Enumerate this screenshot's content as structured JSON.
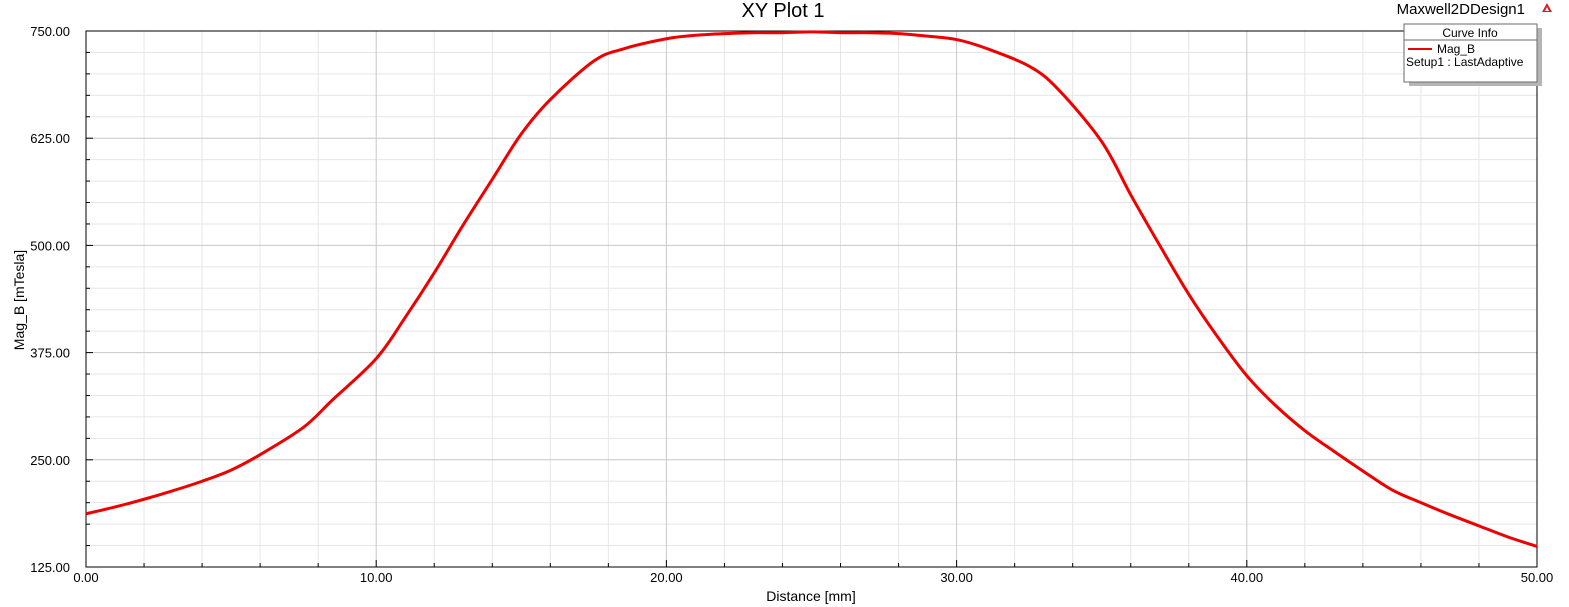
{
  "design_name": "Maxwell2DDesign1",
  "legend": {
    "header": "Curve Info",
    "entry_name": "Mag_B",
    "entry_setup": "Setup1 : LastAdaptive",
    "position": "top-right"
  },
  "colors": {
    "curve": "#ee0000",
    "major_grid": "#c8c8c8",
    "minor_grid": "#e6e6e6",
    "axis": "#000000"
  },
  "icons": [
    "ansys-logo-icon"
  ],
  "chart_data": {
    "type": "line",
    "title": "XY Plot 1",
    "xlabel": "Distance [mm]",
    "ylabel": "Mag_B [mTesla]",
    "xlim": [
      0,
      50
    ],
    "ylim": [
      125,
      750
    ],
    "grid": true,
    "x_ticks": [
      0,
      10,
      20,
      30,
      40,
      50
    ],
    "x_tick_labels": [
      "0.00",
      "10.00",
      "20.00",
      "30.00",
      "40.00",
      "50.00"
    ],
    "y_ticks": [
      125,
      250,
      375,
      500,
      625,
      750
    ],
    "y_tick_labels": [
      "125.00",
      "250.00",
      "375.00",
      "500.00",
      "625.00",
      "750.00"
    ],
    "series": [
      {
        "name": "Mag_B",
        "x": [
          0,
          1,
          2,
          3,
          4,
          5,
          6,
          7.5,
          8.5,
          10,
          11,
          12,
          13,
          14,
          15,
          16,
          17.5,
          18.5,
          20,
          21,
          22,
          23,
          24,
          25,
          26,
          27,
          28,
          29,
          30,
          31,
          32.5,
          33.5,
          35,
          36,
          37,
          38,
          39,
          40,
          41,
          42,
          43,
          44,
          45,
          46,
          47,
          48,
          49,
          50
        ],
        "y": [
          187,
          195,
          204,
          214,
          225,
          238,
          256,
          288,
          320,
          368,
          416,
          468,
          524,
          577,
          630,
          670,
          715,
          729,
          741,
          745,
          747,
          748,
          748,
          749,
          748,
          748,
          747,
          744,
          740,
          730,
          709,
          682,
          621,
          559,
          500,
          443,
          393,
          348,
          313,
          284,
          260,
          237,
          215,
          200,
          186,
          173,
          160,
          149
        ]
      }
    ]
  }
}
